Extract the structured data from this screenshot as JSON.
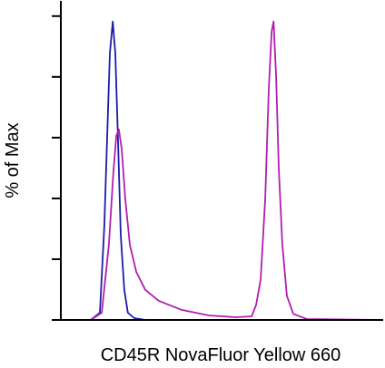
{
  "chart_data": {
    "type": "line",
    "x_label": "CD45R NovaFluor Yellow 660",
    "y_label": "% of Max",
    "xlim": [
      0,
      100
    ],
    "ylim": [
      0,
      105
    ],
    "yticks": [
      0,
      20,
      40,
      60,
      80,
      100
    ],
    "series": [
      {
        "color": "#1c1ca6",
        "x": [
          0,
          9.3,
          12.1,
          13.5,
          14.4,
          15.2,
          16.1,
          16.9,
          17.7,
          18.6,
          19.7,
          20.8,
          22.8,
          26.2,
          100
        ],
        "values": [
          0,
          0,
          2.4,
          31,
          60.9,
          87.8,
          98.2,
          87.8,
          60.9,
          27.8,
          9.9,
          2.4,
          0.6,
          0,
          0
        ]
      },
      {
        "color": "#b01eb0",
        "x": [
          0,
          9.3,
          12.7,
          14.9,
          16.3,
          17.2,
          18.0,
          18.9,
          20.0,
          21.4,
          23.4,
          26.2,
          30.4,
          37.5,
          45.9,
          54.4,
          59.2,
          60.6,
          62.0,
          63.4,
          64.5,
          65.4,
          66.0,
          66.8,
          67.6,
          68.7,
          70.1,
          72.1,
          76.3,
          100
        ],
        "values": [
          0,
          0,
          2.4,
          24.8,
          48.7,
          60.6,
          62.7,
          56.1,
          39.7,
          24.8,
          15.8,
          9.9,
          6.3,
          3.3,
          1.5,
          0.9,
          1.2,
          5,
          13.4,
          40,
          76,
          95,
          98.2,
          80,
          50,
          25,
          8,
          2,
          0.3,
          0
        ]
      }
    ]
  }
}
